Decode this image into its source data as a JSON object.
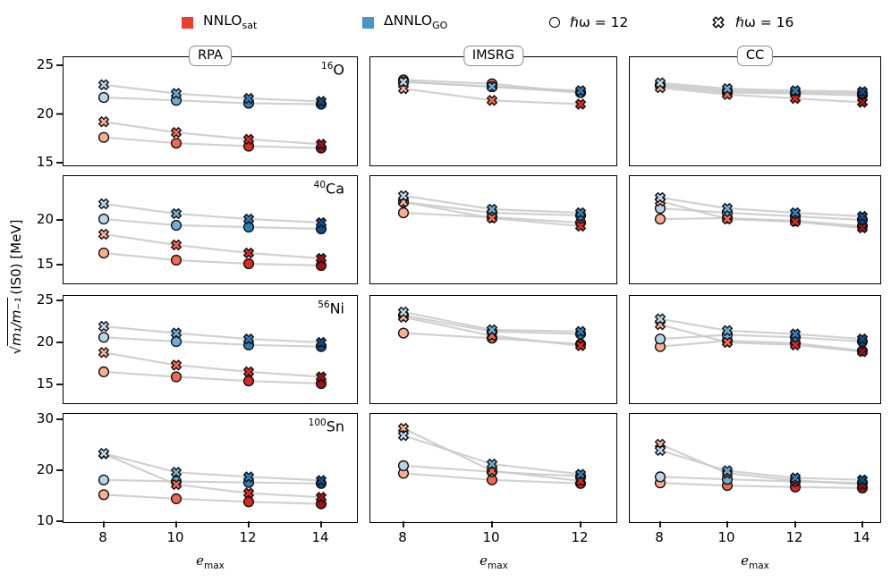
{
  "legend": {
    "items": [
      {
        "type": "square",
        "color": "#ee3d2e",
        "label_main": "NNLO",
        "label_sub": "sat"
      },
      {
        "type": "square",
        "color": "#4796c8",
        "label_main": "ΔNNLO",
        "label_sub": "GO"
      },
      {
        "type": "circle",
        "color": "#ffffff",
        "label_main": "ℏω = 12",
        "label_sub": ""
      },
      {
        "type": "xmark",
        "color": "#ffffff",
        "label_main": "ℏω = 16",
        "label_sub": ""
      }
    ]
  },
  "axes": {
    "ylabel_sqrt": "√",
    "ylabel_radicand": "m₁/m₋₁",
    "ylabel_suffix": "(IS0) [MeV]",
    "xlabel_main": "e",
    "xlabel_sub": "max"
  },
  "colors": {
    "line": "#c9c9c9",
    "frame": "#000000",
    "marker_edge": "#111111"
  },
  "chart_data": {
    "type": "scatter",
    "description": "Grid of 4 nuclei rows x 3 many-body-method columns; isoscalar monopole energy vs model-space size emax; marker color darkens with emax",
    "columns": [
      {
        "title": "RPA",
        "emax": [
          8,
          10,
          12,
          14
        ]
      },
      {
        "title": "IMSRG",
        "emax": [
          8,
          10,
          12
        ]
      },
      {
        "title": "CC",
        "emax": [
          8,
          10,
          12,
          14
        ]
      }
    ],
    "rows": [
      {
        "key": "16O",
        "nucleus_mass": "16",
        "nucleus_symbol": "O",
        "ymin": 14.54,
        "ymax": 25.83,
        "yticks": [
          25,
          20,
          15
        ]
      },
      {
        "key": "40Ca",
        "nucleus_mass": "40",
        "nucleus_symbol": "Ca",
        "ymin": 12.7,
        "ymax": 24.9,
        "yticks": [
          20,
          15
        ]
      },
      {
        "key": "56Ni",
        "nucleus_mass": "56",
        "nucleus_symbol": "Ni",
        "ymin": 12.55,
        "ymax": 25.53,
        "yticks": [
          25,
          20,
          15
        ]
      },
      {
        "key": "100Sn",
        "nucleus_mass": "100",
        "nucleus_symbol": "Sn",
        "ymin": 9.47,
        "ymax": 31.05,
        "yticks": [
          30,
          20,
          10
        ]
      }
    ],
    "series_defs": [
      {
        "id": "sat12",
        "interaction": "NNLOsat",
        "hw": 12,
        "marker": "circle",
        "palette": "reds"
      },
      {
        "id": "go12",
        "interaction": "ΔNNLOgo",
        "hw": 12,
        "marker": "circle",
        "palette": "blues"
      },
      {
        "id": "sat16",
        "interaction": "NNLOsat",
        "hw": 16,
        "marker": "x",
        "palette": "reds"
      },
      {
        "id": "go16",
        "interaction": "ΔNNLOgo",
        "hw": 16,
        "marker": "x",
        "palette": "blues"
      }
    ],
    "palettes": {
      "reds": {
        "8": "#fcae91",
        "10": "#f4684e",
        "12": "#da2a20",
        "14": "#9f1214"
      },
      "blues": {
        "8": "#b9d5ea",
        "10": "#6baed6",
        "12": "#2e7ebc",
        "14": "#0d4e8d"
      }
    },
    "panels": {
      "16O": {
        "RPA": {
          "sat12": [
            17.6,
            17.0,
            16.7,
            16.5
          ],
          "sat16": [
            19.2,
            18.1,
            17.4,
            16.9
          ],
          "go12": [
            21.7,
            21.4,
            21.1,
            21.0
          ],
          "go16": [
            23.0,
            22.1,
            21.6,
            21.3
          ]
        },
        "IMSRG": {
          "sat12": [
            23.5,
            23.1,
            22.2
          ],
          "sat16": [
            22.6,
            21.4,
            21.0
          ],
          "go12": [
            23.3,
            22.8,
            22.2
          ],
          "go16": [
            23.3,
            22.8,
            22.4
          ]
        },
        "CC": {
          "sat12": [
            22.9,
            22.2,
            22.1,
            21.9
          ],
          "sat16": [
            22.7,
            22.0,
            21.6,
            21.2
          ],
          "go12": [
            23.0,
            22.4,
            22.2,
            22.1
          ],
          "go16": [
            23.2,
            22.6,
            22.4,
            22.3
          ]
        }
      },
      "40Ca": {
        "RPA": {
          "sat12": [
            16.3,
            15.5,
            15.1,
            14.9
          ],
          "sat16": [
            18.4,
            17.2,
            16.3,
            15.7
          ],
          "go12": [
            20.1,
            19.4,
            19.2,
            19.0
          ],
          "go16": [
            21.8,
            20.7,
            20.1,
            19.7
          ]
        },
        "IMSRG": {
          "sat12": [
            20.8,
            20.3,
            19.7
          ],
          "sat16": [
            22.0,
            20.2,
            19.3
          ],
          "go12": [
            22.0,
            20.8,
            20.5
          ],
          "go16": [
            22.7,
            21.2,
            20.8
          ]
        },
        "CC": {
          "sat12": [
            20.1,
            20.2,
            19.9,
            19.3
          ],
          "sat16": [
            22.1,
            20.1,
            19.8,
            19.1
          ],
          "go12": [
            21.3,
            20.8,
            20.4,
            20.0
          ],
          "go16": [
            22.5,
            21.3,
            20.8,
            20.4
          ]
        }
      },
      "56Ni": {
        "RPA": {
          "sat12": [
            16.5,
            15.9,
            15.4,
            15.1
          ],
          "sat16": [
            18.8,
            17.3,
            16.5,
            15.9
          ],
          "go12": [
            20.6,
            20.1,
            19.7,
            19.5
          ],
          "go16": [
            21.9,
            21.1,
            20.4,
            20.0
          ]
        },
        "IMSRG": {
          "sat12": [
            21.1,
            20.5,
            19.8
          ],
          "sat16": [
            23.0,
            20.8,
            19.6
          ],
          "go12": [
            23.2,
            21.3,
            21.0
          ],
          "go16": [
            23.6,
            21.5,
            21.3
          ]
        },
        "CC": {
          "sat12": [
            19.5,
            20.2,
            19.9,
            19.0
          ],
          "sat16": [
            22.1,
            20.0,
            19.7,
            18.9
          ],
          "go12": [
            20.4,
            20.9,
            20.6,
            20.1
          ],
          "go16": [
            22.8,
            21.4,
            21.0,
            20.4
          ]
        }
      },
      "100Sn": {
        "RPA": {
          "sat12": [
            15.2,
            14.4,
            13.8,
            13.4
          ],
          "sat16": [
            23.2,
            17.2,
            15.5,
            14.7
          ],
          "go12": [
            18.1,
            17.8,
            17.6,
            17.4
          ],
          "go16": [
            23.3,
            19.6,
            18.7,
            18.0
          ]
        },
        "IMSRG": {
          "sat12": [
            19.4,
            18.1,
            17.4
          ],
          "sat16": [
            28.2,
            19.9,
            17.9
          ],
          "go12": [
            20.9,
            19.7,
            18.8
          ],
          "go16": [
            26.8,
            21.2,
            19.2
          ]
        },
        "CC": {
          "sat12": [
            17.5,
            17.0,
            16.7,
            16.5
          ],
          "sat16": [
            25.1,
            19.4,
            18.0,
            17.2
          ],
          "go12": [
            18.7,
            18.2,
            17.8,
            17.5
          ],
          "go16": [
            23.9,
            19.9,
            18.5,
            18.1
          ]
        }
      }
    }
  }
}
